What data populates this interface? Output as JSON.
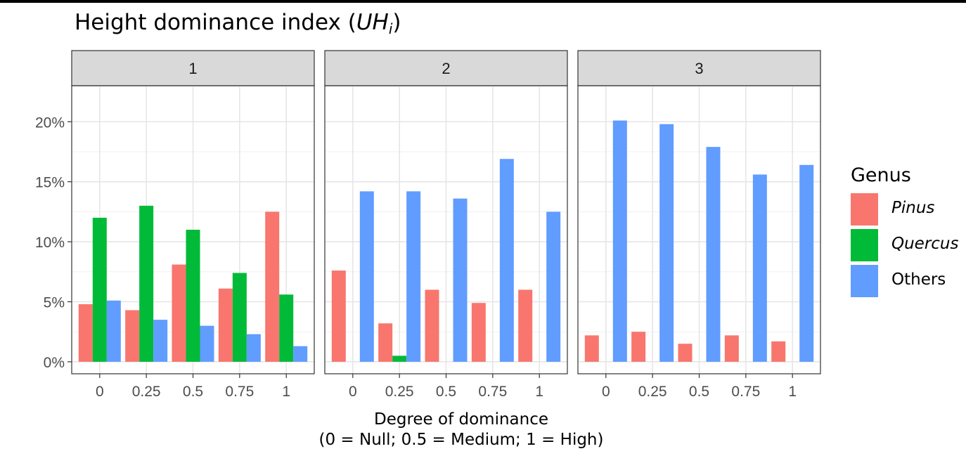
{
  "title": {
    "text": "Height dominance index (",
    "symbol": "UH",
    "subscript": "i",
    "close": ")"
  },
  "chart_data": {
    "type": "bar",
    "y_format": "percent",
    "ylim": [
      -1,
      23
    ],
    "yticks": [
      0,
      5,
      10,
      15,
      20
    ],
    "ytick_labels": [
      "0%",
      "5%",
      "10%",
      "15%",
      "20%"
    ],
    "categories": [
      "0",
      "0.25",
      "0.5",
      "0.75",
      "1"
    ],
    "xlabel": "Degree of dominance",
    "xlabel_line2": "(0 = Null; 0.5 = Medium; 1 = High)",
    "grid": true,
    "legend_position": "right",
    "legend_title": "Genus",
    "series_meta": [
      {
        "name": "Pinus",
        "color": "#F8766D",
        "italic": true
      },
      {
        "name": "Quercus",
        "color": "#00BA38",
        "italic": true
      },
      {
        "name": "Others",
        "color": "#619CFF",
        "italic": false
      }
    ],
    "panels": [
      {
        "label": "1",
        "series": [
          {
            "name": "Pinus",
            "values": [
              4.8,
              4.3,
              8.1,
              6.1,
              12.5
            ]
          },
          {
            "name": "Quercus",
            "values": [
              12.0,
              13.0,
              11.0,
              7.4,
              5.6
            ]
          },
          {
            "name": "Others",
            "values": [
              5.1,
              3.5,
              3.0,
              2.3,
              1.3
            ]
          }
        ]
      },
      {
        "label": "2",
        "series": [
          {
            "name": "Pinus",
            "values": [
              7.6,
              3.2,
              6.0,
              4.9,
              6.0
            ]
          },
          {
            "name": "Quercus",
            "values": [
              0,
              0.5,
              0,
              0,
              0
            ]
          },
          {
            "name": "Others",
            "values": [
              14.2,
              14.2,
              13.6,
              16.9,
              12.5
            ]
          }
        ]
      },
      {
        "label": "3",
        "series": [
          {
            "name": "Pinus",
            "values": [
              2.2,
              2.5,
              1.5,
              2.2,
              1.7
            ]
          },
          {
            "name": "Quercus",
            "values": [
              0,
              0,
              0,
              0,
              0
            ]
          },
          {
            "name": "Others",
            "values": [
              20.1,
              19.8,
              17.9,
              15.6,
              16.4
            ]
          }
        ]
      }
    ]
  }
}
